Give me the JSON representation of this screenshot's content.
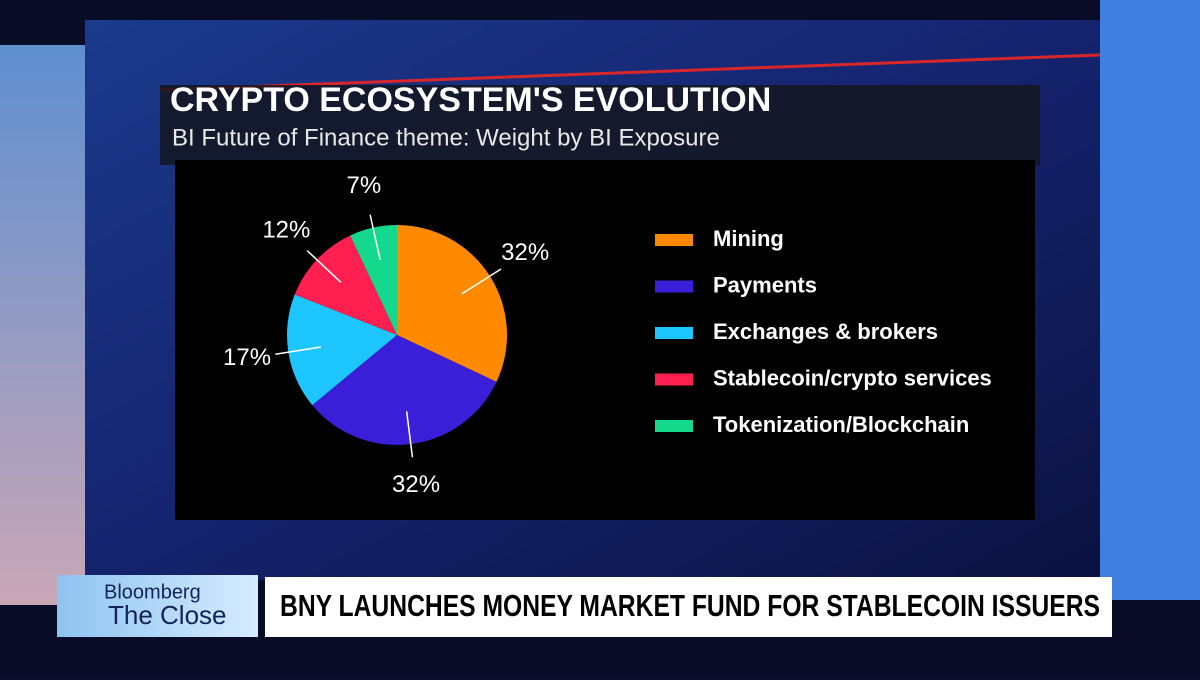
{
  "chart_data": {
    "type": "pie",
    "title": "CRYPTO ECOSYSTEM'S EVOLUTION",
    "subtitle": "BI Future of Finance theme: Weight by BI Exposure",
    "categories": [
      "Mining",
      "Payments",
      "Exchanges & brokers",
      "Stablecoin/crypto services",
      "Tokenization/Blockchain"
    ],
    "values": [
      32,
      32,
      17,
      12,
      7
    ],
    "value_labels": [
      "32%",
      "32%",
      "17%",
      "12%",
      "7%"
    ],
    "colors": [
      "#ff8a00",
      "#3b1fd8",
      "#1ec6ff",
      "#ff1f50",
      "#14d98c"
    ],
    "legend": "right"
  },
  "lower_third": {
    "brand": "Bloomberg",
    "show": "The Close",
    "headline": "BNY LAUNCHES MONEY MARKET FUND FOR STABLECOIN ISSUERS"
  }
}
